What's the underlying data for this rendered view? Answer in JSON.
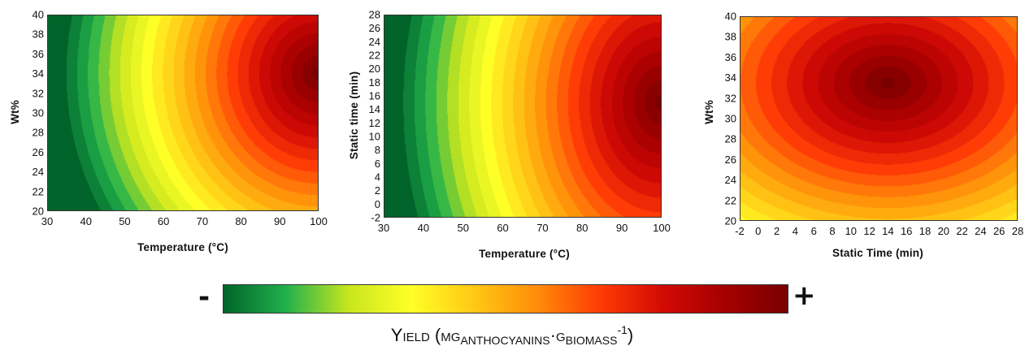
{
  "colors": {
    "scale": [
      "#00642a",
      "#22b14c",
      "#c8e61e",
      "#ffff28",
      "#ffc814",
      "#ff8c0a",
      "#ff3c05",
      "#d20a05",
      "#a50000",
      "#780000"
    ]
  },
  "chart_data": [
    {
      "type": "heatmap",
      "id": "temperature-vs-wt",
      "title": "",
      "xlabel": "Temperature (°C)",
      "ylabel": "Wt%",
      "xlim": [
        30,
        100
      ],
      "ylim": [
        20,
        40
      ],
      "x_ticks": [
        30,
        40,
        50,
        60,
        70,
        80,
        90,
        100
      ],
      "y_ticks": [
        20,
        22,
        24,
        26,
        28,
        30,
        32,
        34,
        36,
        38,
        40
      ],
      "surface": {
        "x_optimum": 100,
        "y_optimum": 34,
        "x_weight": 1.0,
        "y_weight": 0.45
      }
    },
    {
      "type": "heatmap",
      "id": "temperature-vs-static-time",
      "title": "",
      "xlabel": "Temperature (°C)",
      "ylabel": "Static time (min)",
      "xlim": [
        30,
        100
      ],
      "ylim": [
        -2,
        28
      ],
      "x_ticks": [
        30,
        40,
        50,
        60,
        70,
        80,
        90,
        100
      ],
      "y_ticks": [
        -2,
        0,
        2,
        4,
        6,
        8,
        10,
        12,
        14,
        16,
        18,
        20,
        22,
        24,
        26,
        28
      ],
      "surface": {
        "x_optimum": 100,
        "y_optimum": 15,
        "x_weight": 1.0,
        "y_weight": 0.3
      }
    },
    {
      "type": "heatmap",
      "id": "static-time-vs-wt",
      "title": "",
      "xlabel": "Static Time (min)",
      "ylabel": "Wt%",
      "xlim": [
        -2,
        28
      ],
      "ylim": [
        20,
        40
      ],
      "x_ticks": [
        -2,
        0,
        2,
        4,
        6,
        8,
        10,
        12,
        14,
        16,
        18,
        20,
        22,
        24,
        26,
        28
      ],
      "y_ticks": [
        20,
        22,
        24,
        26,
        28,
        30,
        32,
        34,
        36,
        38,
        40
      ],
      "surface": {
        "x_optimum": 14,
        "y_optimum": 33.5,
        "x_weight": 0.5,
        "y_weight": 0.55
      }
    }
  ],
  "colorbar": {
    "min_symbol": "-",
    "max_symbol": "+",
    "label": {
      "y_initial": "Y",
      "y_rest": "IELD",
      "open": " (",
      "mg_initial": "MG",
      "mg_sub": "ANTHOCYANINS",
      "dot": "·",
      "g_initial": "G",
      "g_sub": "BIOMASS",
      "exponent": "-1",
      "close": ")"
    }
  }
}
